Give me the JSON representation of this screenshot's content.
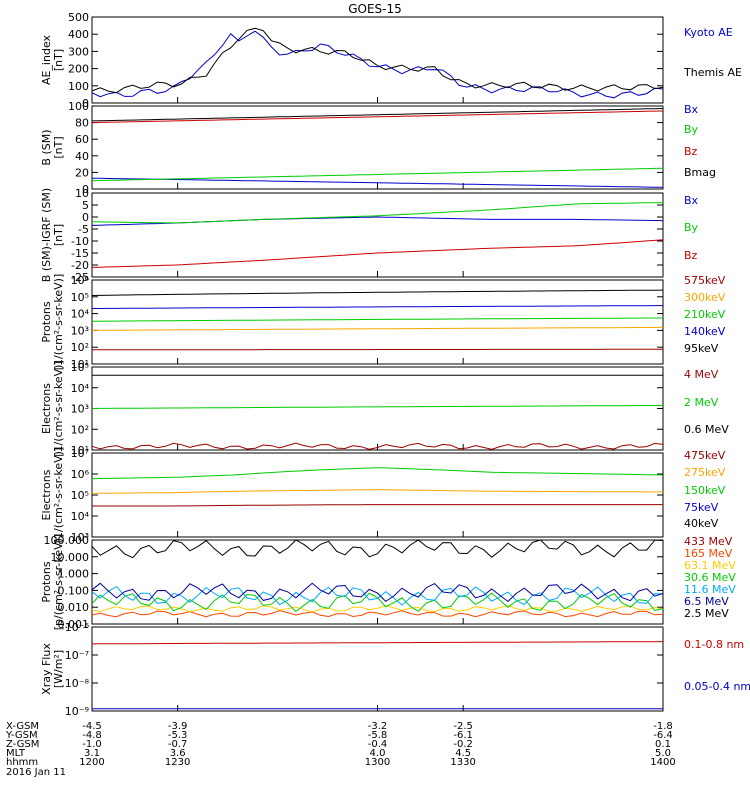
{
  "title": "GOES-15",
  "chart_data": [
    {
      "type": "line",
      "ylabel": "AE_index\n[nT]",
      "ylim": [
        0,
        500
      ],
      "scale": "linear",
      "ticks": [
        "0",
        "100",
        "200",
        "300",
        "400",
        "500"
      ],
      "x": [
        1200,
        1210,
        1220,
        1228,
        1232,
        1240,
        1248,
        1252,
        1256,
        1260,
        1264,
        1270,
        1280,
        1290,
        1300,
        1310,
        1320,
        1330,
        1340,
        1350,
        1360,
        1370,
        1380,
        1390,
        1400
      ],
      "series": [
        {
          "name": "Kyoto AE",
          "color": "#0000cc",
          "values": [
            60,
            55,
            70,
            65,
            120,
            220,
            410,
            350,
            460,
            370,
            300,
            270,
            330,
            290,
            220,
            175,
            200,
            110,
            85,
            75,
            70,
            60,
            55,
            50,
            65
          ]
        },
        {
          "name": "Themis AE",
          "color": "#000000",
          "values": [
            80,
            85,
            95,
            100,
            110,
            180,
            330,
            400,
            420,
            430,
            330,
            300,
            310,
            300,
            210,
            190,
            200,
            120,
            100,
            95,
            95,
            100,
            90,
            80,
            95
          ]
        }
      ]
    },
    {
      "type": "line",
      "ylabel": "B (SM)\n[nT]",
      "ylim": [
        0,
        100
      ],
      "scale": "linear",
      "ticks": [
        "0",
        "20",
        "40",
        "60",
        "80",
        "100"
      ],
      "x": [
        1200,
        1400
      ],
      "series": [
        {
          "name": "Bx",
          "color": "#0000cc",
          "values": [
            13,
            2
          ]
        },
        {
          "name": "By",
          "color": "#00cc00",
          "values": [
            10,
            25
          ]
        },
        {
          "name": "Bz",
          "color": "#cc0000",
          "values": [
            80,
            94
          ]
        },
        {
          "name": "Bmag",
          "color": "#000000",
          "values": [
            82,
            97
          ]
        }
      ]
    },
    {
      "type": "line",
      "ylabel": "B (SM)-IGRF (SM)\n[nT]",
      "ylim": [
        -25,
        10
      ],
      "scale": "linear",
      "ticks": [
        "-25",
        "-20",
        "-15",
        "-10",
        "-5",
        "0",
        "5",
        "10"
      ],
      "x": [
        1200,
        1230,
        1260,
        1300,
        1340,
        1370,
        1400
      ],
      "series": [
        {
          "name": "Bx",
          "color": "#0000cc",
          "values": [
            -3.5,
            -2.5,
            -1,
            0,
            -1,
            -1,
            -1.5
          ]
        },
        {
          "name": "By",
          "color": "#00cc00",
          "values": [
            -2,
            -2.5,
            -1,
            0.5,
            3,
            5.5,
            6
          ]
        },
        {
          "name": "Bz",
          "color": "#cc0000",
          "values": [
            -21,
            -20,
            -18,
            -15,
            -13,
            -12,
            -9.5
          ]
        }
      ]
    },
    {
      "type": "line",
      "ylabel": "Protons\n[1/(cm²-s-sr-keV)]",
      "ylim": [
        10,
        1000000
      ],
      "scale": "log",
      "ticks": [
        "10¹",
        "10²",
        "10³",
        "10⁴",
        "10⁵",
        "10⁶"
      ],
      "x": [
        1200,
        1400
      ],
      "series": [
        {
          "name": "575keV",
          "color": "#990000",
          "values": [
            70,
            75
          ]
        },
        {
          "name": "300keV",
          "color": "#ffa500",
          "values": [
            1000,
            1500
          ]
        },
        {
          "name": "210keV",
          "color": "#00cc00",
          "values": [
            3500,
            5500
          ]
        },
        {
          "name": "140keV",
          "color": "#0000cc",
          "values": [
            20000,
            30000
          ]
        },
        {
          "name": "95keV",
          "color": "#000000",
          "values": [
            120000,
            250000
          ]
        }
      ]
    },
    {
      "type": "line",
      "ylabel": "Electrons\n[1/(cm²-s-sr-keV)]",
      "ylim": [
        10,
        100000
      ],
      "scale": "log",
      "ticks": [
        "10¹",
        "10²",
        "10³",
        "10⁴",
        "10⁵"
      ],
      "x": [
        1200,
        1400
      ],
      "series": [
        {
          "name": "4 MeV",
          "color": "#990000",
          "values": [
            15,
            15
          ]
        },
        {
          "name": "2 MeV",
          "color": "#00cc00",
          "values": [
            1000,
            1400
          ]
        },
        {
          "name": "0.6 MeV",
          "color": "#000000",
          "values": [
            40000,
            40000
          ]
        }
      ]
    },
    {
      "type": "line",
      "ylabel": "Electrons\n[1/(cm²-s-sr-keV)]",
      "ylim": [
        1000,
        10000000
      ],
      "scale": "log",
      "ticks": [
        "10³",
        "10⁴",
        "10⁵",
        "10⁶",
        "10⁷"
      ],
      "x": [
        1200,
        1230,
        1250,
        1300,
        1340,
        1400
      ],
      "series": [
        {
          "name": "475keV",
          "color": "#990000",
          "values": [
            30000,
            30000,
            32000,
            35000,
            35000,
            35000
          ]
        },
        {
          "name": "275keV",
          "color": "#ffa500",
          "values": [
            120000,
            130000,
            150000,
            180000,
            150000,
            140000
          ]
        },
        {
          "name": "150keV",
          "color": "#00cc00",
          "values": [
            600000,
            700000,
            900000,
            2000000,
            1200000,
            900000
          ]
        },
        {
          "name": "75keV",
          "color": "#0000cc",
          "values": [
            null,
            null,
            null,
            null,
            null,
            null
          ]
        },
        {
          "name": "40keV",
          "color": "#000000",
          "values": [
            null,
            null,
            null,
            null,
            null,
            null
          ]
        }
      ]
    },
    {
      "type": "line",
      "ylabel": "Protons\n[p/(cm²-s-sr-keV)]",
      "ylim": [
        0.001,
        100
      ],
      "scale": "log",
      "ticks": [
        "0.001",
        "0.010",
        "0.100",
        "1.000",
        "10.000",
        "100.000"
      ],
      "x": [
        1200,
        1400
      ],
      "series": [
        {
          "name": "433 MeV",
          "color": "#990000",
          "values": [
            null,
            null
          ]
        },
        {
          "name": "165 MeV",
          "color": "#ff4500",
          "values": [
            0.004,
            0.004
          ]
        },
        {
          "name": "63.1 MeV",
          "color": "#ffcc00",
          "values": [
            0.008,
            0.008
          ]
        },
        {
          "name": "30.6 MeV",
          "color": "#00cc00",
          "values": [
            0.02,
            0.02
          ]
        },
        {
          "name": "11.6 MeV",
          "color": "#00aaff",
          "values": [
            0.05,
            0.05
          ]
        },
        {
          "name": "6.5 MeV",
          "color": "#000099",
          "values": [
            0.08,
            0.08
          ]
        },
        {
          "name": "2.5 MeV",
          "color": "#000000",
          "values": [
            30,
            35
          ]
        }
      ]
    },
    {
      "type": "line",
      "ylabel": "Xray Flux\n[W/m²]",
      "ylim": [
        1e-09,
        1e-06
      ],
      "scale": "log",
      "ticks": [
        "10⁻⁹",
        "10⁻⁸",
        "10⁻⁷",
        "10⁻⁶"
      ],
      "x": [
        1200,
        1400
      ],
      "series": [
        {
          "name": "0.1-0.8 nm",
          "color": "#cc0000",
          "values": [
            2.5e-07,
            3e-07
          ]
        },
        {
          "name": "0.05-0.4 nm",
          "color": "#0000cc",
          "values": [
            1.2e-09,
            1.2e-09
          ]
        }
      ]
    }
  ],
  "axis_table": {
    "rows": [
      {
        "label": "X-GSM",
        "values": [
          "-4.5",
          "-3.9",
          "-3.2",
          "-2.5",
          "-1.8"
        ]
      },
      {
        "label": "Y-GSM",
        "values": [
          "-4.8",
          "-5.3",
          "-5.8",
          "-6.1",
          "-6.4"
        ]
      },
      {
        "label": "Z-GSM",
        "values": [
          "-1.0",
          "-0.7",
          "-0.4",
          "-0.2",
          "0.1"
        ]
      },
      {
        "label": "MLT",
        "values": [
          "3.1",
          "3.6",
          "4.0",
          "4.5",
          "5.0"
        ]
      },
      {
        "label": "hhmm",
        "values": [
          "1200",
          "1230",
          "1300",
          "1330",
          "1400"
        ]
      }
    ],
    "date": "2016 Jan 11"
  }
}
